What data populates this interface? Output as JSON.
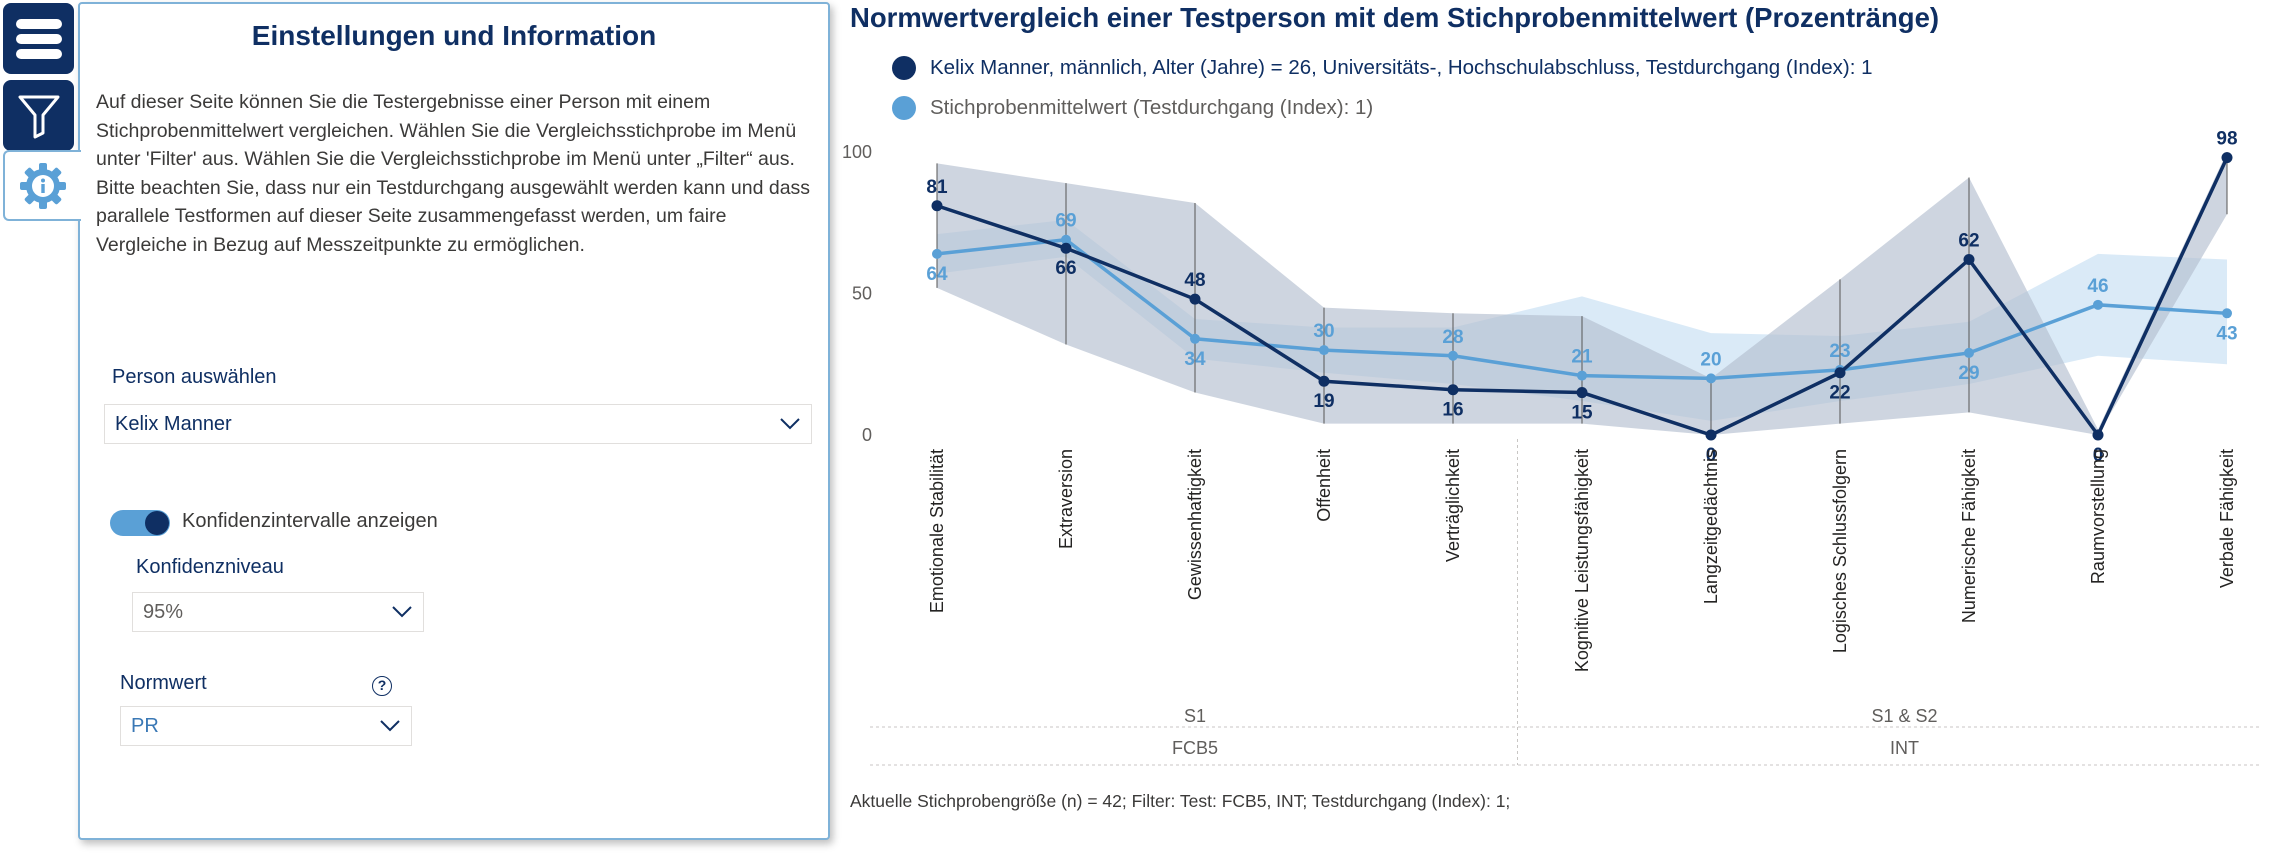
{
  "panel": {
    "title": "Einstellungen und Information",
    "description": "Auf dieser Seite können Sie die Testergebnisse einer Person mit einem Stichprobenmittelwert vergleichen. Wählen Sie die Vergleichsstichprobe im Menü unter 'Filter' aus. Wählen Sie die Vergleichsstichprobe im Menü unter „Filter“ aus. Bitte beachten Sie, dass nur ein Testdurchgang ausgewählt werden kann und dass parallele Testformen auf dieser Seite zusammengefasst werden, um faire Vergleiche in Bezug auf Messzeitpunkte zu ermöglichen.",
    "person_label": "Person auswählen",
    "person_value": "Kelix Manner",
    "toggle_label": "Konfidenzintervalle anzeigen",
    "confidence_label": "Konfidenzniveau",
    "confidence_value": "95%",
    "norm_label": "Normwert",
    "norm_value": "PR",
    "help_glyph": "?"
  },
  "rail": {
    "icons": [
      "menu-icon",
      "filter-icon",
      "settings-info-icon"
    ]
  },
  "chart_title": "Normwertvergleich einer Testperson mit dem Stichprobenmittelwert (Prozentränge)",
  "footer": "Aktuelle Stichprobengröße (n) = 42; Filter: Test: FCB5, INT; Testdurchgang (Index): 1;",
  "colors": {
    "dark": "#0f2f63",
    "light": "#5aa0d6",
    "band_dark": "#b4bfcf",
    "band_light": "#c6dff2"
  },
  "chart_data": {
    "type": "line",
    "title": "Normwertvergleich einer Testperson mit dem Stichprobenmittelwert (Prozentränge)",
    "ylim": [
      0,
      100
    ],
    "yticks": [
      "0",
      "50",
      "100"
    ],
    "categories": [
      "Emotionale Stabilität",
      "Extraversion",
      "Gewissenhaftigkeit",
      "Offenheit",
      "Verträglichkeit",
      "Kognitive Leistungsfähigkeit",
      "Langzeitgedächtnis",
      "Logisches Schlussfolgern",
      "Numerische Fähigkeit",
      "Raumvorstellung",
      "Verbale Fähigkeit"
    ],
    "groups": [
      {
        "subgroup": "S1",
        "group": "FCB5",
        "from": 0,
        "to": 4
      },
      {
        "subgroup": "S1 & S2",
        "group": "INT",
        "from": 5,
        "to": 10
      }
    ],
    "series": [
      {
        "name": "Kelix Manner, männlich, Alter (Jahre) = 26, Universitäts-, Hochschulabschluss, Testdurchgang (Index): 1",
        "values": [
          81,
          66,
          48,
          19,
          16,
          15,
          0,
          22,
          62,
          0,
          98
        ],
        "ci_low": [
          52,
          32,
          15,
          4,
          4,
          4,
          0,
          4,
          8,
          0,
          78
        ],
        "ci_high": [
          96,
          89,
          82,
          45,
          43,
          42,
          20,
          55,
          91,
          2,
          100
        ]
      },
      {
        "name": "Stichprobenmittelwert  (Testdurchgang (Index): 1)",
        "values": [
          64,
          69,
          34,
          30,
          28,
          21,
          20,
          23,
          29,
          46,
          43
        ],
        "ci_low": [
          57,
          63,
          27,
          22,
          18,
          12,
          5,
          12,
          18,
          28,
          25
        ],
        "ci_high": [
          71,
          76,
          41,
          38,
          38,
          49,
          36,
          35,
          40,
          64,
          62
        ]
      }
    ]
  }
}
